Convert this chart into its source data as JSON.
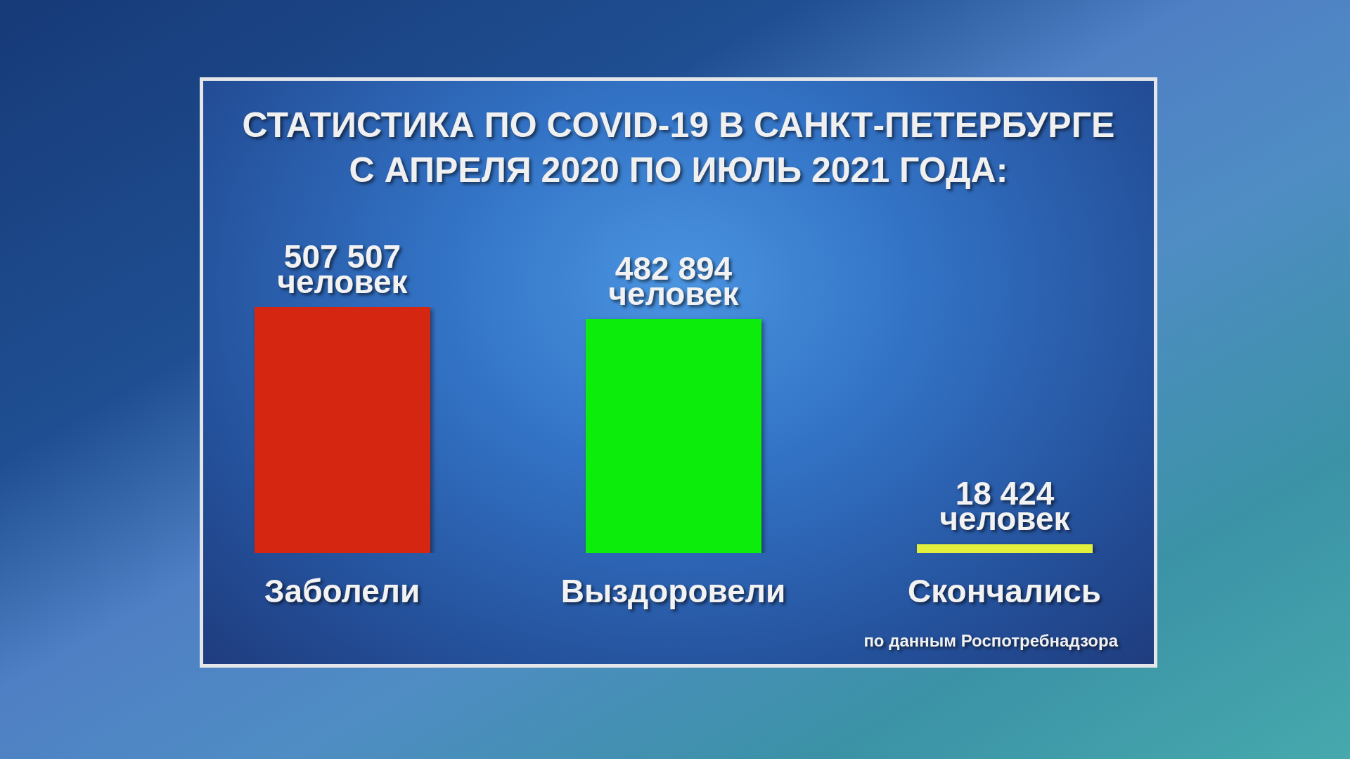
{
  "chart_data": {
    "type": "bar",
    "title": "СТАТИСТИКА ПО COVID-19 В САНКТ-ПЕТЕРБУРГЕ С АПРЕЛЯ 2020 ПО ИЮЛЬ 2021 ГОДА:",
    "categories": [
      "Заболели",
      "Выздоровели",
      "Скончались"
    ],
    "values": [
      507507,
      482894,
      18424
    ],
    "colors": [
      "#d42610",
      "#0ced0c",
      "#e2ef3c"
    ],
    "value_labels": [
      "507 507 человек",
      "482 894 человек",
      "18 424 человек"
    ],
    "annotations": [
      "по данным Роспотребнадзора"
    ]
  }
}
